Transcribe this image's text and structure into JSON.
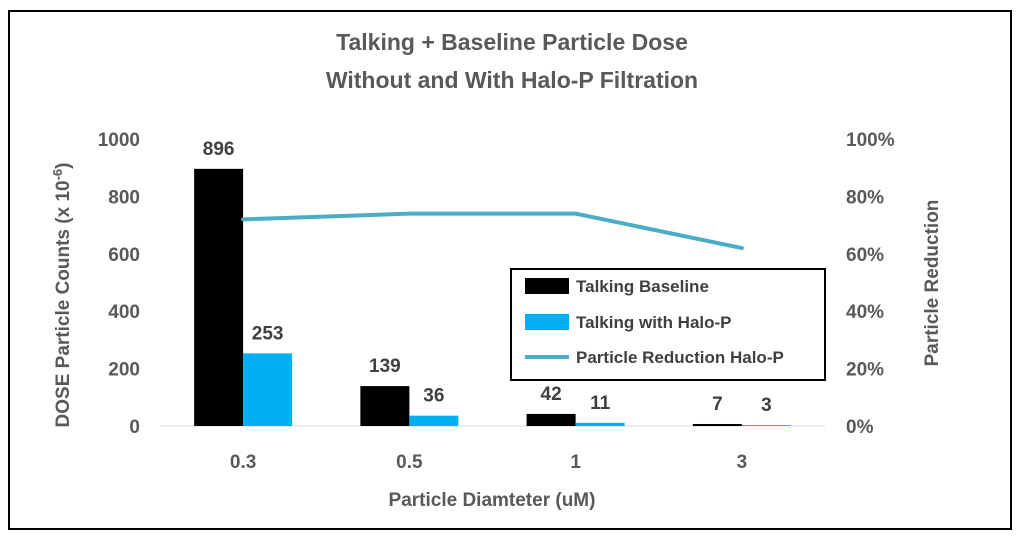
{
  "chart_data": {
    "type": "bar",
    "title_lines": [
      "Talking + Baseline Particle Dose",
      "Without and With Halo-P Filtration"
    ],
    "xlabel": "Particle Diamteter  (uM)",
    "ylabel_main": "DOSE  Particle Counts (x 10",
    "ylabel_sup": "-6",
    "ylabel_close": ")",
    "y2label": "Particle Reduction",
    "categories": [
      "0.3",
      "0.5",
      "1",
      "3"
    ],
    "ylim": [
      0,
      1000
    ],
    "yticks": [
      "0",
      "200",
      "400",
      "600",
      "800",
      "1000"
    ],
    "y2lim": [
      0,
      1
    ],
    "y2ticks": [
      "0%",
      "20%",
      "40%",
      "60%",
      "80%",
      "100%"
    ],
    "series": [
      {
        "name": "Talking Baseline",
        "type": "bar",
        "color": "#000000",
        "values": [
          896,
          139,
          42,
          7
        ],
        "labels": [
          "896",
          "139",
          "42",
          "7"
        ]
      },
      {
        "name": "Talking with Halo-P",
        "type": "bar",
        "color": "#00B0F0",
        "values": [
          253,
          36,
          11,
          3
        ],
        "labels": [
          "253",
          "36",
          "11",
          "3"
        ]
      },
      {
        "name": "Particle Reduction Halo-P",
        "type": "line",
        "axis": "secondary",
        "color": "#4BACC6",
        "values": [
          0.72,
          0.74,
          0.74,
          0.62
        ]
      }
    ],
    "legend": {
      "placement": "right-middle"
    },
    "grid": false
  }
}
